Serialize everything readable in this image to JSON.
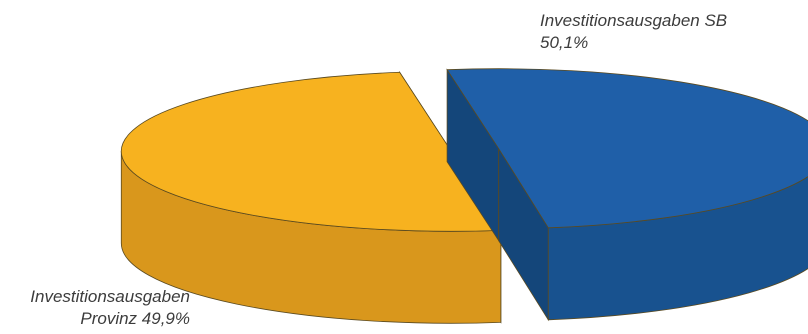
{
  "chart_data": {
    "type": "pie",
    "title": "",
    "style": "3d-exploded",
    "slices": [
      {
        "label_line1": "Investitionsausgaben SB",
        "label_line2": "50,1%",
        "value": 50.1,
        "color": "#1f5fa8",
        "side_color": "#18528f"
      },
      {
        "label_line1": "Investitionsausgaben",
        "label_line2": "Provinz 49,9%",
        "value": 49.9,
        "color": "#f7b21f",
        "side_color": "#d9971c"
      }
    ]
  }
}
